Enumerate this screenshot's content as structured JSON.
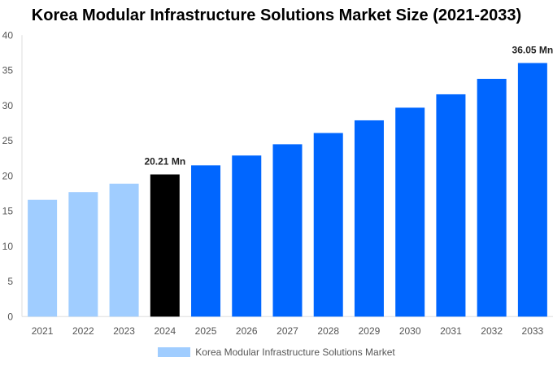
{
  "chart_data": {
    "type": "bar",
    "title": "Korea Modular Infrastructure Solutions Market Size (2021-2033)",
    "categories": [
      "2021",
      "2022",
      "2023",
      "2024",
      "2025",
      "2026",
      "2027",
      "2028",
      "2029",
      "2030",
      "2031",
      "2032",
      "2033"
    ],
    "series": [
      {
        "name": "Korea Modular Infrastructure Solutions Market",
        "values": [
          16.6,
          17.7,
          18.9,
          20.21,
          21.5,
          22.9,
          24.5,
          26.1,
          27.9,
          29.7,
          31.6,
          33.8,
          36.05
        ]
      }
    ],
    "data_labels": {
      "2024": "20.21 Mn",
      "2033": "36.05 Mn"
    },
    "yticks": [
      0,
      5,
      10,
      15,
      20,
      25,
      30,
      35,
      40
    ],
    "ylim": [
      0,
      40
    ],
    "xlabel": "",
    "ylabel": "",
    "grid": false,
    "legend_position": "bottom",
    "colors": {
      "historical": "#a0cdff",
      "base_year": "#000000",
      "forecast": "#0066ff"
    }
  }
}
